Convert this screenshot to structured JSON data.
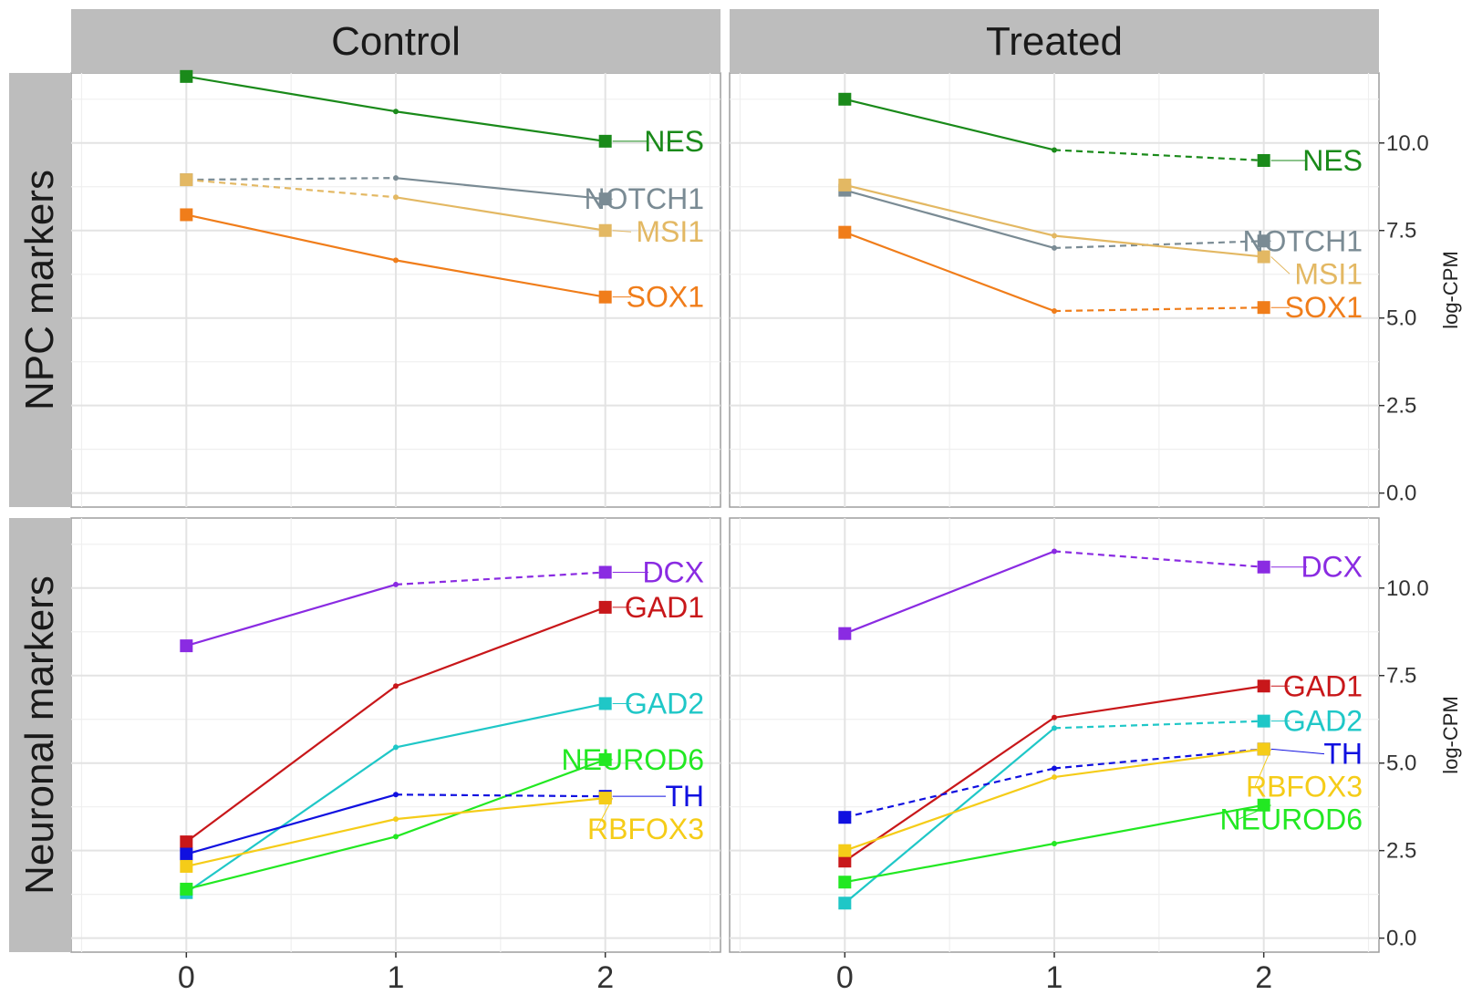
{
  "chart_data": {
    "type": "line",
    "columns": [
      "Control",
      "Treated"
    ],
    "rows": [
      "NPC markers",
      "Neuronal markers"
    ],
    "x": [
      0,
      1,
      2
    ],
    "xlim": [
      -0.55,
      2.55
    ],
    "x_ticks": [
      "0",
      "1",
      "2"
    ],
    "ylabel": "log-CPM",
    "ylim": [
      -0.4,
      12.0
    ],
    "y_ticks": [
      "0.0",
      "2.5",
      "5.0",
      "7.5",
      "10.0"
    ],
    "panels": [
      {
        "row": "NPC markers",
        "column": "Control",
        "series": [
          {
            "name": "NES",
            "color": "#1a8a1a",
            "values": [
              11.9,
              10.9,
              10.05
            ],
            "dashed": [
              false,
              false
            ]
          },
          {
            "name": "NOTCH1",
            "color": "#7a8b94",
            "values": [
              8.95,
              9.0,
              8.4
            ],
            "dashed": [
              true,
              false
            ]
          },
          {
            "name": "MSI1",
            "color": "#e3b863",
            "values": [
              8.95,
              8.45,
              7.5
            ],
            "dashed": [
              true,
              false
            ]
          },
          {
            "name": "SOX1",
            "color": "#f07d1a",
            "values": [
              7.95,
              6.65,
              5.6
            ],
            "dashed": [
              false,
              false
            ]
          }
        ]
      },
      {
        "row": "NPC markers",
        "column": "Treated",
        "series": [
          {
            "name": "NES",
            "color": "#1a8a1a",
            "values": [
              11.25,
              9.8,
              9.5
            ],
            "dashed": [
              false,
              true
            ]
          },
          {
            "name": "NOTCH1",
            "color": "#7a8b94",
            "values": [
              8.65,
              7.0,
              7.2
            ],
            "dashed": [
              false,
              true
            ]
          },
          {
            "name": "MSI1",
            "color": "#e3b863",
            "values": [
              8.8,
              7.35,
              6.75
            ],
            "dashed": [
              false,
              false
            ]
          },
          {
            "name": "SOX1",
            "color": "#f07d1a",
            "values": [
              7.45,
              5.2,
              5.3
            ],
            "dashed": [
              false,
              true
            ]
          }
        ]
      },
      {
        "row": "Neuronal markers",
        "column": "Control",
        "series": [
          {
            "name": "DCX",
            "color": "#8a2be2",
            "values": [
              8.35,
              10.1,
              10.45
            ],
            "dashed": [
              false,
              true
            ]
          },
          {
            "name": "GAD1",
            "color": "#c8171a",
            "values": [
              2.75,
              7.2,
              9.45
            ],
            "dashed": [
              false,
              false
            ]
          },
          {
            "name": "GAD2",
            "color": "#1fc7c7",
            "values": [
              1.3,
              5.45,
              6.7
            ],
            "dashed": [
              false,
              false
            ]
          },
          {
            "name": "NEUROD6",
            "color": "#22e822",
            "values": [
              1.4,
              2.9,
              5.1
            ],
            "dashed": [
              false,
              false
            ]
          },
          {
            "name": "TH",
            "color": "#1010e0",
            "values": [
              2.4,
              4.1,
              4.05
            ],
            "dashed": [
              false,
              true
            ]
          },
          {
            "name": "RBFOX3",
            "color": "#f5cc18",
            "values": [
              2.05,
              3.4,
              4.0
            ],
            "dashed": [
              false,
              false
            ]
          }
        ]
      },
      {
        "row": "Neuronal markers",
        "column": "Treated",
        "series": [
          {
            "name": "DCX",
            "color": "#8a2be2",
            "values": [
              8.7,
              11.05,
              10.6
            ],
            "dashed": [
              false,
              true
            ]
          },
          {
            "name": "GAD1",
            "color": "#c8171a",
            "values": [
              2.2,
              6.3,
              7.2
            ],
            "dashed": [
              false,
              false
            ]
          },
          {
            "name": "GAD2",
            "color": "#1fc7c7",
            "values": [
              1.0,
              6.0,
              6.2
            ],
            "dashed": [
              false,
              true
            ]
          },
          {
            "name": "TH",
            "color": "#1010e0",
            "values": [
              3.45,
              4.85,
              5.4
            ],
            "dashed": [
              true,
              true
            ]
          },
          {
            "name": "RBFOX3",
            "color": "#f5cc18",
            "values": [
              2.5,
              4.6,
              5.4
            ],
            "dashed": [
              false,
              false
            ]
          },
          {
            "name": "NEUROD6",
            "color": "#22e822",
            "values": [
              1.6,
              2.7,
              3.8
            ],
            "dashed": [
              false,
              false
            ]
          }
        ]
      }
    ]
  }
}
